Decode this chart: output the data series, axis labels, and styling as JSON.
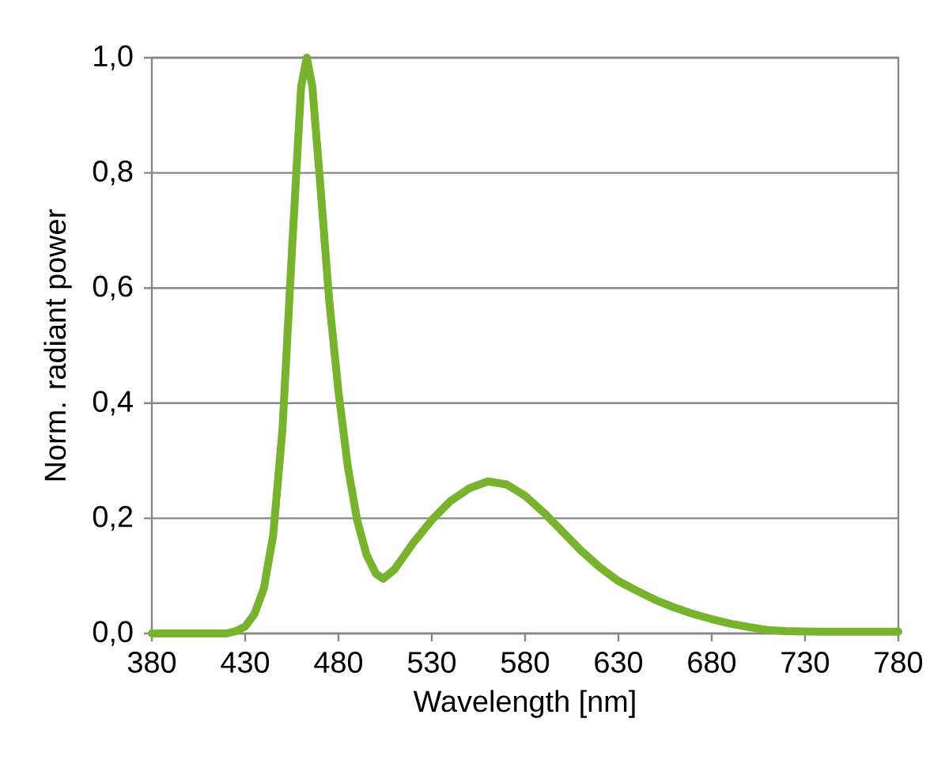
{
  "chart_data": {
    "type": "line",
    "xlabel": "Wavelength [nm]",
    "ylabel": "Norm. radiant power",
    "x": [
      380,
      400,
      420,
      425,
      430,
      435,
      440,
      445,
      450,
      455,
      460,
      463,
      466,
      470,
      475,
      480,
      485,
      490,
      495,
      500,
      504,
      510,
      520,
      530,
      540,
      550,
      560,
      570,
      580,
      590,
      600,
      610,
      620,
      630,
      640,
      650,
      660,
      670,
      680,
      690,
      700,
      710,
      720,
      740,
      760,
      780
    ],
    "series": [
      {
        "color": "#77b32c",
        "values": [
          0.0,
          0.0,
          0.0,
          0.004,
          0.012,
          0.034,
          0.078,
          0.17,
          0.355,
          0.66,
          0.95,
          1.0,
          0.95,
          0.79,
          0.58,
          0.42,
          0.29,
          0.197,
          0.137,
          0.104,
          0.095,
          0.111,
          0.157,
          0.197,
          0.23,
          0.252,
          0.264,
          0.259,
          0.239,
          0.21,
          0.177,
          0.144,
          0.115,
          0.091,
          0.074,
          0.058,
          0.045,
          0.034,
          0.025,
          0.017,
          0.011,
          0.006,
          0.004,
          0.003,
          0.003,
          0.003
        ]
      }
    ],
    "xlim": [
      380,
      780
    ],
    "xticks": [
      380,
      430,
      480,
      530,
      580,
      630,
      680,
      730,
      780
    ],
    "ylim": [
      0,
      1
    ],
    "yticks": [
      {
        "value": 0,
        "label": "0,0"
      },
      {
        "value": 0.2,
        "label": "0,2"
      },
      {
        "value": 0.4,
        "label": "0,4"
      },
      {
        "value": 0.6,
        "label": "0,6"
      },
      {
        "value": 0.8,
        "label": "0,8"
      },
      {
        "value": 1,
        "label": "1,0"
      }
    ],
    "grid": "y",
    "marker": "none",
    "line_style": "solid"
  }
}
